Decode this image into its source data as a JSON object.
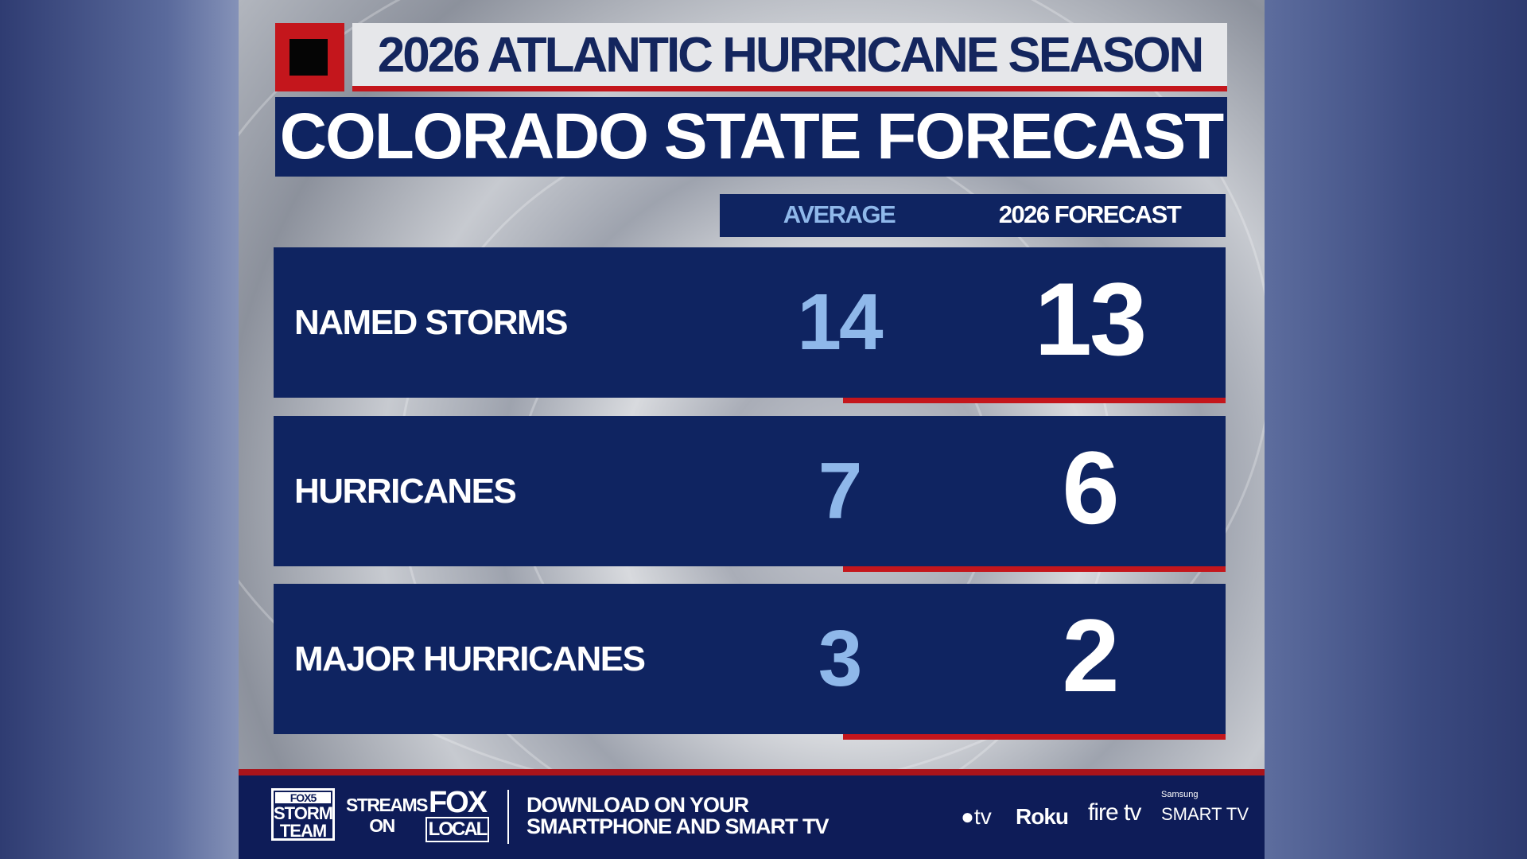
{
  "header": {
    "title": "2026 ATLANTIC HURRICANE SEASON",
    "subtitle": "COLORADO STATE FORECAST"
  },
  "columns": {
    "average": "AVERAGE",
    "forecast": "2026 FORECAST"
  },
  "rows": [
    {
      "label": "NAMED STORMS",
      "average": "14",
      "forecast": "13"
    },
    {
      "label": "HURRICANES",
      "average": "7",
      "forecast": "6"
    },
    {
      "label": "MAJOR HURRICANES",
      "average": "3",
      "forecast": "2"
    }
  ],
  "footer": {
    "logo_storm": {
      "line1": "FOX5",
      "line2": "STORM",
      "line3": "TEAM"
    },
    "streams_on": {
      "line1": "STREAMS",
      "line2": "ON"
    },
    "logo_fox": {
      "line1": "FOX",
      "line2": "LOCAL"
    },
    "download": {
      "line1": "DOWNLOAD ON YOUR",
      "line2": "SMARTPHONE AND SMART TV"
    },
    "platforms": {
      "appletv": "tv",
      "roku": "Roku",
      "firetv": "fire tv",
      "samsung_small": "Samsung",
      "samsung": "SMART TV"
    }
  },
  "colors": {
    "navy": "#0f2461",
    "red": "#c4161c",
    "light_blue": "#8fb8ea"
  }
}
